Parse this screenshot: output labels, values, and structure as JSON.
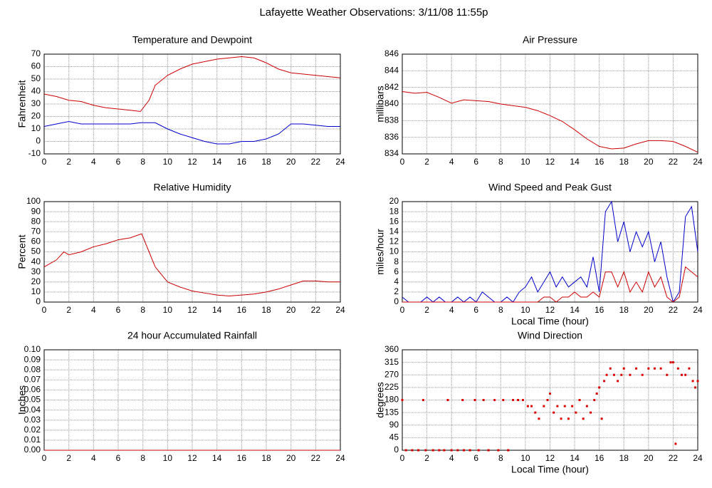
{
  "title": "Lafayette Weather Observations: 3/11/08 11:55p",
  "chart_data": [
    {
      "type": "line",
      "title": "Temperature and Dewpoint",
      "ylabel": "Fahrenheit",
      "x": [
        0,
        1,
        2,
        3,
        4,
        5,
        6,
        7,
        7.8,
        8.5,
        9,
        10,
        11,
        12,
        13,
        14,
        15,
        16,
        17,
        18,
        19,
        20,
        21,
        22,
        23,
        24
      ],
      "xlim": [
        0,
        24
      ],
      "xticks": [
        0,
        2,
        4,
        6,
        8,
        10,
        12,
        14,
        16,
        18,
        20,
        22,
        24
      ],
      "ylim": [
        -10,
        70
      ],
      "yticks": [
        -10,
        0,
        10,
        20,
        30,
        40,
        50,
        60,
        70
      ],
      "grid": true,
      "series": [
        {
          "color": "#cc0000",
          "values": [
            38,
            36,
            33,
            32,
            29,
            27,
            26,
            25,
            24,
            33,
            45,
            53,
            58,
            62,
            64,
            66,
            67,
            68,
            67,
            63,
            58,
            55,
            54,
            53,
            52,
            51
          ]
        },
        {
          "color": "#0000cc",
          "values": [
            12,
            14,
            16,
            14,
            14,
            14,
            14,
            14,
            15,
            15,
            15,
            10,
            6,
            3,
            0,
            -2,
            -2,
            0,
            0,
            2,
            6,
            14,
            14,
            13,
            12,
            12
          ]
        }
      ]
    },
    {
      "type": "line",
      "title": "Air Pressure",
      "ylabel": "millibars",
      "x": [
        0,
        1,
        2,
        3,
        4,
        5,
        6,
        7,
        8,
        9,
        10,
        11,
        12,
        13,
        14,
        15,
        16,
        17,
        18,
        19,
        20,
        21,
        22,
        23,
        24
      ],
      "xlim": [
        0,
        24
      ],
      "xticks": [
        0,
        2,
        4,
        6,
        8,
        10,
        12,
        14,
        16,
        18,
        20,
        22,
        24
      ],
      "ylim": [
        834,
        846
      ],
      "yticks": [
        834,
        836,
        838,
        840,
        842,
        844,
        846
      ],
      "grid": true,
      "series": [
        {
          "color": "#cc0000",
          "values": [
            841.5,
            841.3,
            841.4,
            840.8,
            840.1,
            840.5,
            840.4,
            840.3,
            840.0,
            839.8,
            839.6,
            839.2,
            838.6,
            837.9,
            836.9,
            835.8,
            834.9,
            834.6,
            834.7,
            835.2,
            835.6,
            835.6,
            835.5,
            834.9,
            834.2
          ]
        }
      ]
    },
    {
      "type": "line",
      "title": "Relative Humidity",
      "ylabel": "Percent",
      "x": [
        0,
        1,
        1.6,
        2,
        3,
        4,
        5,
        6,
        7,
        7.9,
        8.5,
        9,
        10,
        11,
        12,
        13,
        14,
        15,
        16,
        17,
        18,
        19,
        20,
        21,
        22,
        23,
        24
      ],
      "xlim": [
        0,
        24
      ],
      "xticks": [
        0,
        2,
        4,
        6,
        8,
        10,
        12,
        14,
        16,
        18,
        20,
        22,
        24
      ],
      "ylim": [
        0,
        100
      ],
      "yticks": [
        0,
        10,
        20,
        30,
        40,
        50,
        60,
        70,
        80,
        90,
        100
      ],
      "grid": true,
      "series": [
        {
          "color": "#cc0000",
          "values": [
            35,
            42,
            50,
            47,
            50,
            55,
            58,
            62,
            64,
            68,
            50,
            35,
            20,
            15,
            11,
            9,
            7,
            6,
            7,
            8,
            10,
            13,
            17,
            21,
            21,
            20,
            20
          ]
        }
      ]
    },
    {
      "type": "line",
      "title": "Wind Speed and Peak Gust",
      "ylabel": "miles/hour",
      "xlabel": "Local Time (hour)",
      "x": [
        0,
        0.5,
        1,
        1.5,
        2,
        2.5,
        3,
        3.5,
        4,
        4.5,
        5,
        5.5,
        6,
        6.5,
        7,
        7.5,
        8,
        8.5,
        9,
        9.5,
        10,
        10.5,
        11,
        11.5,
        12,
        12.5,
        13,
        13.5,
        14,
        14.5,
        15,
        15.5,
        16,
        16.5,
        17,
        17.5,
        18,
        18.5,
        19,
        19.5,
        20,
        20.5,
        21,
        21.5,
        22,
        22.5,
        23,
        23.5,
        24
      ],
      "xlim": [
        0,
        24
      ],
      "xticks": [
        0,
        2,
        4,
        6,
        8,
        10,
        12,
        14,
        16,
        18,
        20,
        22,
        24
      ],
      "ylim": [
        0,
        20
      ],
      "yticks": [
        0,
        2,
        4,
        6,
        8,
        10,
        12,
        14,
        16,
        18,
        20
      ],
      "grid": true,
      "series": [
        {
          "color": "#0000cc",
          "values": [
            1,
            0,
            0,
            0,
            1,
            0,
            1,
            0,
            0,
            1,
            0,
            1,
            0,
            2,
            1,
            0,
            0,
            1,
            0,
            2,
            3,
            5,
            2,
            4,
            6,
            3,
            5,
            3,
            4,
            5,
            3,
            9,
            2,
            18,
            20,
            12,
            16,
            10,
            14,
            11,
            14,
            8,
            12,
            5,
            0,
            2,
            17,
            19,
            10
          ]
        },
        {
          "color": "#cc0000",
          "values": [
            0,
            0,
            0,
            0,
            0,
            0,
            0,
            0,
            0,
            0,
            0,
            0,
            0,
            0,
            0,
            0,
            0,
            0,
            0,
            0,
            0,
            0,
            0,
            1,
            1,
            0,
            1,
            1,
            2,
            1,
            1,
            2,
            1,
            6,
            6,
            3,
            6,
            2,
            4,
            2,
            6,
            3,
            5,
            1,
            0,
            1,
            7,
            6,
            5
          ]
        }
      ]
    },
    {
      "type": "line",
      "title": "24 hour Accumulated Rainfall",
      "ylabel": "Inches",
      "x": [
        0,
        24
      ],
      "xlim": [
        0,
        24
      ],
      "xticks": [
        0,
        2,
        4,
        6,
        8,
        10,
        12,
        14,
        16,
        18,
        20,
        22,
        24
      ],
      "ylim": [
        0,
        0.1
      ],
      "yticks": [
        {
          "value": 0,
          "label": "0.00"
        },
        {
          "value": 0.01,
          "label": "0.01"
        },
        {
          "value": 0.02,
          "label": "0.02"
        },
        {
          "value": 0.03,
          "label": "0.03"
        },
        {
          "value": 0.04,
          "label": "0.04"
        },
        {
          "value": 0.05,
          "label": "0.05"
        },
        {
          "value": 0.06,
          "label": "0.06"
        },
        {
          "value": 0.07,
          "label": "0.07"
        },
        {
          "value": 0.08,
          "label": "0.08"
        },
        {
          "value": 0.09,
          "label": "0.09"
        },
        {
          "value": 0.1,
          "label": "0.10"
        }
      ],
      "grid": true,
      "series": [
        {
          "color": "#cc0000",
          "values": [
            0,
            0
          ]
        }
      ]
    },
    {
      "type": "scatter",
      "title": "Wind Direction",
      "ylabel": "degrees",
      "xlabel": "Local Time (hour)",
      "x": [
        0,
        0.3,
        0.8,
        1.3,
        1.7,
        1.9,
        2.5,
        3,
        3.4,
        3.7,
        4,
        4.5,
        4.9,
        5,
        5.5,
        5.9,
        6.2,
        6.6,
        7,
        7.5,
        7.8,
        8.2,
        8.6,
        9,
        9.4,
        9.8,
        10.2,
        10.5,
        10.8,
        11.1,
        11.5,
        11.8,
        12,
        12.3,
        12.6,
        12.9,
        13.2,
        13.5,
        13.8,
        14.1,
        14.4,
        14.7,
        15,
        15.3,
        15.6,
        15.8,
        16,
        16.2,
        16.4,
        16.6,
        16.9,
        17.2,
        17.5,
        17.8,
        18,
        18.5,
        19,
        19.5,
        20,
        20.5,
        21,
        21.5,
        21.8,
        22,
        22.2,
        22.4,
        22.7,
        23,
        23.3,
        23.6,
        23.8,
        24
      ],
      "xlim": [
        0,
        24
      ],
      "xticks": [
        0,
        2,
        4,
        6,
        8,
        10,
        12,
        14,
        16,
        18,
        20,
        22,
        24
      ],
      "ylim": [
        0,
        360
      ],
      "yticks": [
        0,
        45,
        90,
        135,
        180,
        225,
        270,
        315,
        360
      ],
      "grid": true,
      "series": [
        {
          "color": "#dd0000",
          "values": [
            180,
            0,
            0,
            0,
            180,
            0,
            0,
            0,
            0,
            180,
            0,
            0,
            180,
            0,
            0,
            180,
            0,
            180,
            0,
            180,
            0,
            180,
            0,
            180,
            180,
            180,
            158,
            158,
            135,
            113,
            158,
            180,
            203,
            135,
            158,
            113,
            158,
            113,
            158,
            135,
            180,
            113,
            158,
            135,
            180,
            203,
            225,
            113,
            248,
            270,
            293,
            270,
            248,
            270,
            293,
            270,
            293,
            270,
            293,
            293,
            293,
            270,
            315,
            315,
            23,
            293,
            270,
            270,
            293,
            248,
            225,
            248
          ]
        }
      ]
    }
  ]
}
